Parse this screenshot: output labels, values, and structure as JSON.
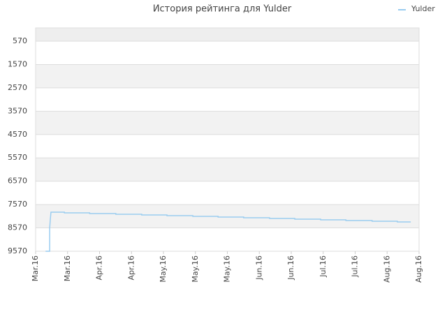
{
  "chart_data": {
    "type": "line",
    "title": "История рейтинга для Yulder",
    "x": [
      0.31,
      0.44,
      0.44,
      0.46,
      0.48,
      0.9,
      0.9,
      1.69,
      1.69,
      2.51,
      2.51,
      3.32,
      3.32,
      4.11,
      4.11,
      4.92,
      4.92,
      5.71,
      5.71,
      6.51,
      6.51,
      7.32,
      7.32,
      8.11,
      8.11,
      8.92,
      8.92,
      9.71,
      9.71,
      10.53,
      10.53,
      11.32,
      11.32,
      11.74
    ],
    "series": [
      {
        "name": "Yulder",
        "color": "#99ccf0",
        "values": [
          9570,
          9570,
          8580,
          8200,
          7895,
          7895,
          7925,
          7925,
          7955,
          7955,
          7985,
          7985,
          8015,
          8015,
          8045,
          8045,
          8075,
          8075,
          8105,
          8105,
          8135,
          8135,
          8165,
          8165,
          8195,
          8195,
          8225,
          8225,
          8255,
          8255,
          8285,
          8285,
          8313,
          8313
        ]
      }
    ],
    "xlim": [
      0,
      12
    ],
    "xticks": [
      {
        "value": 0,
        "label": "Mar.16"
      },
      {
        "value": 1,
        "label": "Mar.16"
      },
      {
        "value": 2,
        "label": "Apr.16"
      },
      {
        "value": 3,
        "label": "Apr.16"
      },
      {
        "value": 4,
        "label": "May.16"
      },
      {
        "value": 5,
        "label": "May.16"
      },
      {
        "value": 6,
        "label": "May.16"
      },
      {
        "value": 7,
        "label": "Jun.16"
      },
      {
        "value": 8,
        "label": "Jun.16"
      },
      {
        "value": 9,
        "label": "Jul.16"
      },
      {
        "value": 10,
        "label": "Jul.16"
      },
      {
        "value": 11,
        "label": "Aug.16"
      },
      {
        "value": 12,
        "label": "Aug.16"
      }
    ],
    "ylim": [
      0,
      9570
    ],
    "y_inverted": true,
    "yticks": [
      570,
      1570,
      2570,
      3570,
      4570,
      5570,
      6570,
      7570,
      8570,
      9570
    ],
    "grid": true,
    "legend": "top-right"
  }
}
